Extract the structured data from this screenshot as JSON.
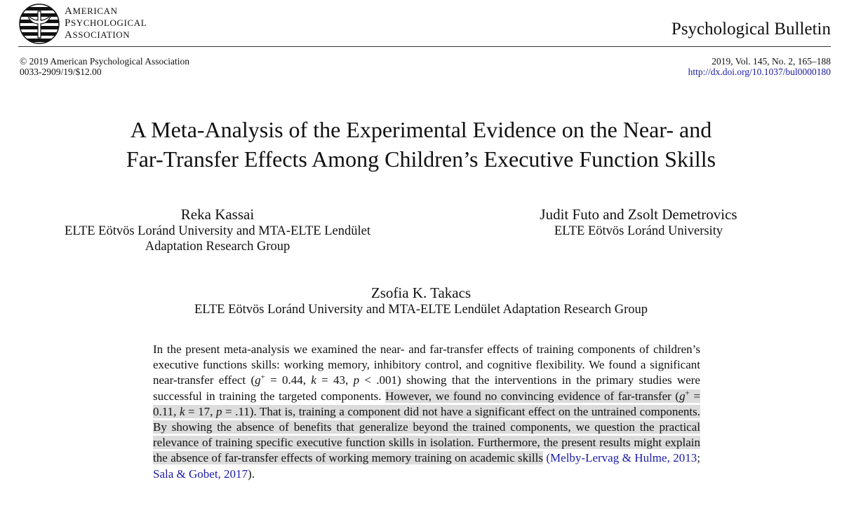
{
  "header": {
    "publisher_lines": [
      "American",
      "Psychological",
      "Association"
    ],
    "journal": "Psychological Bulletin",
    "copyright": "© 2019 American Psychological Association",
    "issn_price": "0033-2909/19/$12.00",
    "citation": "2019, Vol. 145, No. 2, 165–188",
    "doi": "http://dx.doi.org/10.1037/bul0000180"
  },
  "paper": {
    "title_lines": [
      "A Meta-Analysis of the Experimental Evidence on the Near- and",
      "Far-Transfer Effects Among Children’s Executive Function Skills"
    ],
    "authors": [
      {
        "name": "Reka Kassai",
        "affiliation_lines": [
          "ELTE Eötvös Loránd University and MTA-ELTE Lendület",
          "Adaptation Research Group"
        ]
      },
      {
        "name": "Judit Futo and Zsolt Demetrovics",
        "affiliation_lines": [
          "ELTE Eötvös Loránd University"
        ]
      },
      {
        "name": "Zsofia K. Takacs",
        "affiliation_lines": [
          "ELTE Eötvös Loránd University and MTA-ELTE Lendület Adaptation Research Group"
        ]
      }
    ]
  },
  "abstract": {
    "p1": "In the present meta-analysis we examined the near- and far-transfer effects of training components of children’s executive functions skills: working memory, inhibitory control, and cognitive flexibility. We found a significant near-transfer effect (",
    "g1": "g",
    "plus1": "+",
    "stat1a": " = 0.44, ",
    "k1": "k",
    "stat1b": " = 43, ",
    "p1v": "p",
    "stat1c": " < .001) showing that the interventions in the primary studies were successful in training the targeted components. ",
    "h1": "However, we found no convincing evidence of far-transfer (",
    "g2": "g",
    "plus2": "+",
    "stat2a": " = 0.11, ",
    "k2": "k",
    "stat2b": " = 17, ",
    "p2v": "p",
    "stat2c": " = .11). That is, training a component did not have a significant effect on the untrained components. By showing the absence of benefits that generalize beyond the trained components, we question the practical relevance of training specific executive function skills in isolation. Furthermore, the present results might explain the absence of far-transfer effects of working memory training on academic skills",
    "open_paren": " (",
    "cite1": "Melby-Lervag & Hulme, 2013",
    "sep": "; ",
    "cite2": "Sala & Gobet, 2017",
    "close": ")."
  }
}
